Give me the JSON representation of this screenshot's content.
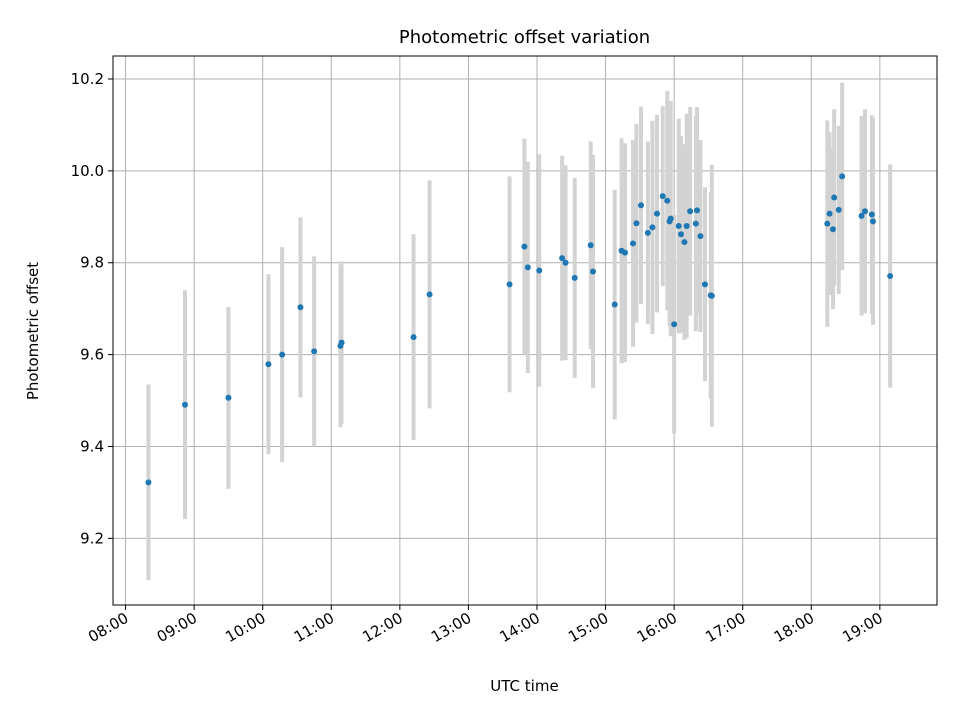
{
  "chart_data": {
    "type": "scatter",
    "title": "Photometric offset variation",
    "xlabel": "UTC time",
    "ylabel": "Photometric offset",
    "x_axis_type": "time",
    "xlim": [
      "07:49",
      "19:50"
    ],
    "ylim": [
      9.055,
      10.25
    ],
    "x_ticks": [
      "08:00",
      "09:00",
      "10:00",
      "11:00",
      "12:00",
      "13:00",
      "14:00",
      "15:00",
      "16:00",
      "17:00",
      "18:00",
      "19:00"
    ],
    "y_ticks": [
      "9.2",
      "9.4",
      "9.6",
      "9.8",
      "10.0",
      "10.2"
    ],
    "y_tick_values": [
      9.2,
      9.4,
      9.6,
      9.8,
      10.0,
      10.2
    ],
    "grid": true,
    "legend": "none",
    "colors": {
      "marker": "#1f77b4",
      "error_bar": "#d3d3d3",
      "grid": "#b0b0b0"
    },
    "series": [
      {
        "x": [
          "08:20",
          "08:52",
          "09:30",
          "10:05",
          "10:17",
          "10:33",
          "10:45",
          "11:08",
          "11:09",
          "12:12",
          "12:26",
          "13:36",
          "13:49",
          "13:52",
          "14:02",
          "14:22",
          "14:25",
          "14:33",
          "14:47",
          "14:49",
          "15:08",
          "15:14",
          "15:17",
          "15:24",
          "15:27",
          "15:31",
          "15:37",
          "15:41",
          "15:45",
          "15:50",
          "15:54",
          "15:56",
          "15:57",
          "16:00",
          "16:04",
          "16:06",
          "16:09",
          "16:11",
          "16:14",
          "16:19",
          "16:20",
          "16:23",
          "16:27",
          "16:32",
          "16:33",
          "18:14",
          "18:16",
          "18:19",
          "18:20",
          "18:24",
          "18:27",
          "18:44",
          "18:47",
          "18:53",
          "18:54",
          "19:09"
        ],
        "y": [
          9.322,
          9.491,
          9.506,
          9.579,
          9.6,
          9.703,
          9.607,
          9.619,
          9.626,
          9.638,
          9.731,
          9.753,
          9.835,
          9.79,
          9.783,
          9.81,
          9.8,
          9.767,
          9.838,
          9.781,
          9.709,
          9.826,
          9.822,
          9.842,
          9.886,
          9.925,
          9.865,
          9.877,
          9.907,
          9.945,
          9.935,
          9.89,
          9.896,
          9.666,
          9.88,
          9.862,
          9.845,
          9.88,
          9.912,
          9.885,
          9.914,
          9.858,
          9.753,
          9.729,
          9.728,
          9.885,
          9.907,
          9.873,
          9.942,
          9.915,
          9.988,
          9.902,
          9.912,
          9.905,
          9.89,
          9.771
        ],
        "yerr": [
          0.213,
          0.249,
          0.198,
          0.196,
          0.234,
          0.196,
          0.207,
          0.177,
          0.177,
          0.224,
          0.248,
          0.235,
          0.235,
          0.23,
          0.253,
          0.223,
          0.212,
          0.218,
          0.226,
          0.254,
          0.25,
          0.245,
          0.238,
          0.225,
          0.216,
          0.215,
          0.199,
          0.232,
          0.215,
          0.196,
          0.239,
          0.228,
          0.256,
          0.238,
          0.234,
          0.214,
          0.213,
          0.244,
          0.227,
          0.234,
          0.225,
          0.209,
          0.211,
          0.225,
          0.285,
          0.225,
          0.177,
          0.174,
          0.192,
          0.183,
          0.204,
          0.217,
          0.222,
          0.216,
          0.225,
          0.243
        ]
      }
    ]
  }
}
